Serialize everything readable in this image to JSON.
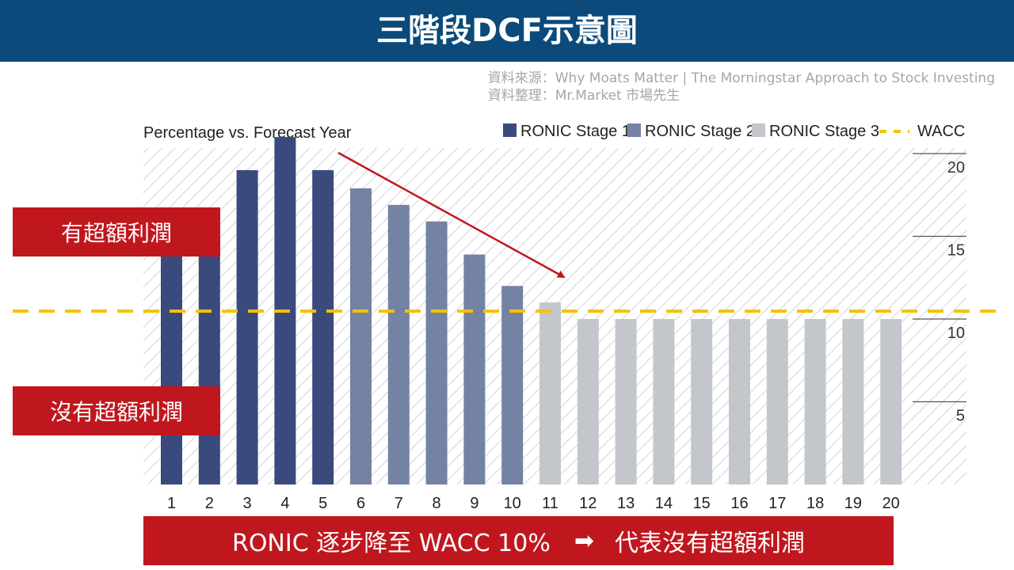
{
  "title": "三階段DCF示意圖",
  "source": {
    "line1": "資料來源：Why Moats Matter | The Morningstar Approach to Stock Investing",
    "line2": "資料整理：Mr.Market 市場先生"
  },
  "labels": {
    "above_wacc": "有超額利潤",
    "below_wacc": "沒有超額利潤"
  },
  "banner": {
    "left": "RONIC 逐步降至 WACC 10%",
    "arrow": "➡",
    "right": "代表沒有超額利潤"
  },
  "colors": {
    "stage1": "#3b4a7c",
    "stage2": "#7482a3",
    "stage3": "#c3c7cc",
    "wacc": "#f4c20d",
    "accent_red": "#c0171e",
    "title_bg": "#0b4a7a"
  },
  "chart_data": {
    "type": "bar",
    "title": "Percentage vs. Forecast Year",
    "categories": [
      "1",
      "2",
      "3",
      "4",
      "5",
      "6",
      "7",
      "8",
      "9",
      "10",
      "11",
      "12",
      "13",
      "14",
      "15",
      "16",
      "17",
      "18",
      "19",
      "20"
    ],
    "series": [
      {
        "name": "RONIC Stage 1",
        "x": [
          "1",
          "2",
          "3",
          "4",
          "5"
        ],
        "values": [
          15,
          15,
          19,
          21,
          19
        ]
      },
      {
        "name": "RONIC Stage 2",
        "x": [
          "6",
          "7",
          "8",
          "9",
          "10"
        ],
        "values": [
          17.9,
          16.9,
          15.9,
          13.9,
          12
        ]
      },
      {
        "name": "RONIC Stage 3",
        "x": [
          "11",
          "12",
          "13",
          "14",
          "15",
          "16",
          "17",
          "18",
          "19",
          "20"
        ],
        "values": [
          11,
          10,
          10,
          10,
          10,
          10,
          10,
          10,
          10,
          10
        ]
      }
    ],
    "reference_line": {
      "name": "WACC",
      "value": 10
    },
    "legend": [
      "RONIC Stage 1",
      "RONIC Stage 2",
      "RONIC Stage 3",
      "WACC"
    ],
    "y_ticks": [
      "5",
      "10",
      "15",
      "20"
    ],
    "ylim": [
      0,
      21
    ],
    "y_axis_side": "right",
    "legend_position": "top-right",
    "background": "diagonal hatch"
  }
}
